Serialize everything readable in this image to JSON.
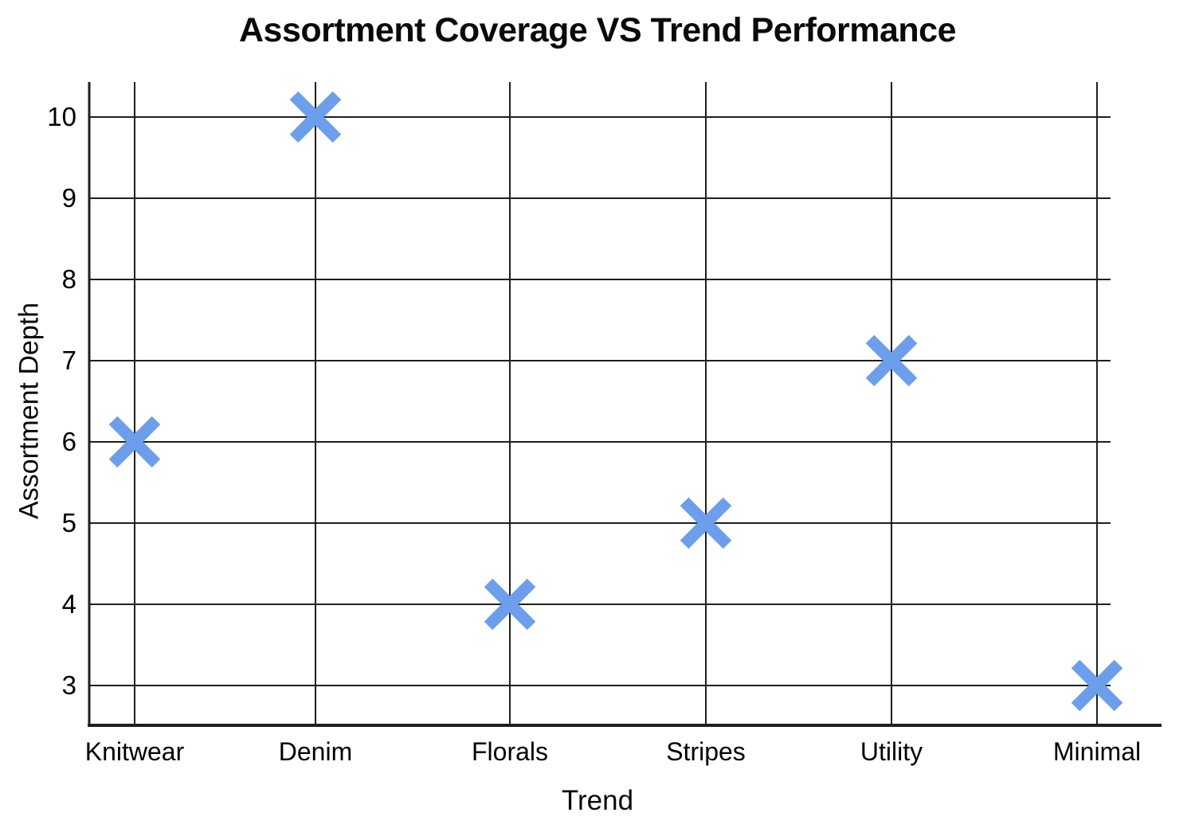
{
  "chart_data": {
    "type": "scatter",
    "title": "Assortment Coverage VS Trend Performance",
    "xlabel": "Trend",
    "ylabel": "Assortment Depth",
    "categories": [
      "Knitwear",
      "Denim",
      "Florals",
      "Stripes",
      "Utility",
      "Minimal"
    ],
    "series": [
      {
        "name": "Assortment Depth",
        "marker": "x",
        "color": "#6D9EEB",
        "values": [
          6,
          10,
          4,
          5,
          7,
          3
        ]
      }
    ],
    "y_ticks": [
      10,
      9,
      8,
      7,
      6,
      5,
      4,
      3
    ],
    "ylim": [
      3,
      10
    ],
    "grid": true,
    "legend": "none",
    "colors": {
      "marker": "#6D9EEB",
      "grid": "#1F1F1F",
      "axis": "#1F1F1F",
      "text": "#000000",
      "background": "#FFFFFF"
    }
  }
}
